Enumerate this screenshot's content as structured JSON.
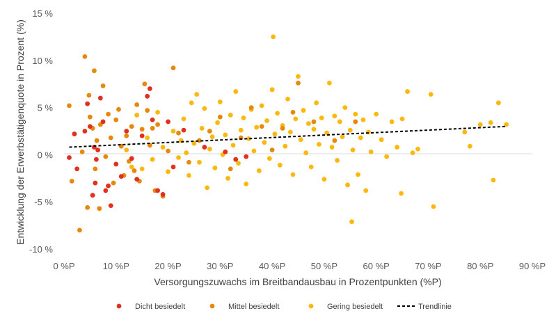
{
  "chart_data": {
    "type": "scatter",
    "xlabel": "Versorgungszuwachs im Breitbandausbau in Prozentpunkten (%P)",
    "ylabel": "Entwicklung der Erwerbstätigenquote in Prozent (%)",
    "xlim": [
      0,
      90
    ],
    "ylim": [
      -10,
      15
    ],
    "x_ticks": [
      {
        "value": 0,
        "label": "0 %P"
      },
      {
        "value": 10,
        "label": "10 %P"
      },
      {
        "value": 20,
        "label": "20 %P"
      },
      {
        "value": 30,
        "label": "30 %P"
      },
      {
        "value": 40,
        "label": "40 %P"
      },
      {
        "value": 50,
        "label": "50 %P"
      },
      {
        "value": 60,
        "label": "60 %P"
      },
      {
        "value": 70,
        "label": "70 %P"
      },
      {
        "value": 80,
        "label": "80 %P"
      },
      {
        "value": 90,
        "label": "90 %P"
      }
    ],
    "y_ticks": [
      {
        "value": -10,
        "label": "-10 %"
      },
      {
        "value": -5,
        "label": "-5 %"
      },
      {
        "value": 0,
        "label": "0 %"
      },
      {
        "value": 5,
        "label": "5 %"
      },
      {
        "value": 10,
        "label": "10 %"
      },
      {
        "value": 15,
        "label": "15 %"
      }
    ],
    "grid": false,
    "legend_position": "bottom",
    "series": [
      {
        "name": "Dicht besiedelt",
        "color": "#e0301e",
        "points": [
          [
            1,
            -0.3
          ],
          [
            2,
            2.2
          ],
          [
            2.5,
            -1.5
          ],
          [
            4,
            2.5
          ],
          [
            4.5,
            5.4
          ],
          [
            5,
            3
          ],
          [
            5.5,
            -4.3
          ],
          [
            5.8,
            0.8
          ],
          [
            6,
            -3
          ],
          [
            6.2,
            -0.5
          ],
          [
            6.5,
            0.5
          ],
          [
            7,
            6
          ],
          [
            7.5,
            3.5
          ],
          [
            8,
            -3.8
          ],
          [
            8.5,
            -3.3
          ],
          [
            9,
            -5.4
          ],
          [
            10,
            -1
          ],
          [
            11,
            -2.3
          ],
          [
            12,
            2.5
          ],
          [
            13,
            -0.4
          ],
          [
            14,
            -2.6
          ],
          [
            15,
            2
          ],
          [
            16,
            6.2
          ],
          [
            16.5,
            7
          ],
          [
            17,
            3.7
          ],
          [
            18,
            -3.8
          ],
          [
            19,
            -4.2
          ],
          [
            20,
            3.5
          ],
          [
            21,
            -1.3
          ],
          [
            23,
            2.6
          ],
          [
            27,
            0.8
          ],
          [
            31,
            0.3
          ],
          [
            33,
            -0.5
          ],
          [
            35,
            -0.2
          ]
        ]
      },
      {
        "name": "Mittel besiedelt",
        "color": "#e6890b",
        "points": [
          [
            1,
            5.2
          ],
          [
            1.5,
            -2.8
          ],
          [
            3,
            -8
          ],
          [
            3.5,
            0.3
          ],
          [
            4,
            10.4
          ],
          [
            4.5,
            -5.6
          ],
          [
            4.8,
            6.3
          ],
          [
            5,
            4
          ],
          [
            5.5,
            2.8
          ],
          [
            5.8,
            8.9
          ],
          [
            6,
            -1.5
          ],
          [
            6.3,
            1.5
          ],
          [
            6.8,
            -5.7
          ],
          [
            7,
            3.2
          ],
          [
            7.5,
            7.3
          ],
          [
            8,
            -0.2
          ],
          [
            8.5,
            4.3
          ],
          [
            9,
            1.8
          ],
          [
            9.5,
            -3
          ],
          [
            10,
            3.7
          ],
          [
            10.5,
            4.8
          ],
          [
            11,
            0.9
          ],
          [
            11.5,
            -2.2
          ],
          [
            12,
            2
          ],
          [
            12.5,
            -0.7
          ],
          [
            13,
            3
          ],
          [
            13.5,
            -1.7
          ],
          [
            14,
            5.3
          ],
          [
            14.5,
            -2.8
          ],
          [
            15,
            2.7
          ],
          [
            15.5,
            7.5
          ],
          [
            16,
            4.7
          ],
          [
            16.5,
            1
          ],
          [
            17,
            2.8
          ],
          [
            17.5,
            -3.8
          ],
          [
            18,
            3.2
          ],
          [
            19,
            -4.4
          ],
          [
            20,
            0.4
          ],
          [
            21,
            9.2
          ],
          [
            22,
            2.3
          ],
          [
            24,
            -0.8
          ],
          [
            26,
            1.5
          ],
          [
            28,
            2.5
          ],
          [
            30,
            4
          ],
          [
            32,
            -1.5
          ],
          [
            34,
            1.8
          ],
          [
            36,
            5
          ],
          [
            38,
            3
          ],
          [
            40,
            0.5
          ],
          [
            42,
            2.8
          ],
          [
            44,
            4.5
          ],
          [
            45,
            7.6
          ],
          [
            48,
            3.5
          ],
          [
            52,
            1.5
          ],
          [
            56,
            3.5
          ]
        ]
      },
      {
        "name": "Gering besiedelt",
        "color": "#fbb80f",
        "points": [
          [
            12,
            0.5
          ],
          [
            13,
            -1.3
          ],
          [
            14,
            4.2
          ],
          [
            15,
            -1.5
          ],
          [
            16,
            1.8
          ],
          [
            17,
            -0.5
          ],
          [
            18,
            4.5
          ],
          [
            19,
            0.8
          ],
          [
            20,
            -1.8
          ],
          [
            21,
            2.5
          ],
          [
            22,
            -0.3
          ],
          [
            22.5,
            1.5
          ],
          [
            23,
            3.8
          ],
          [
            23.5,
            0.2
          ],
          [
            24,
            -2.2
          ],
          [
            24.5,
            5.5
          ],
          [
            25,
            1.2
          ],
          [
            25.5,
            6.4
          ],
          [
            26,
            -0.8
          ],
          [
            26.5,
            2.8
          ],
          [
            27,
            4.9
          ],
          [
            27.5,
            -3.5
          ],
          [
            28,
            0.6
          ],
          [
            28.5,
            1.9
          ],
          [
            29,
            -1.4
          ],
          [
            29.5,
            3.4
          ],
          [
            30,
            5.6
          ],
          [
            30.5,
            0
          ],
          [
            31,
            2.1
          ],
          [
            31.5,
            -2.5
          ],
          [
            32,
            4.2
          ],
          [
            32.5,
            1
          ],
          [
            33,
            6.7
          ],
          [
            33.5,
            -0.9
          ],
          [
            34,
            2.6
          ],
          [
            34.5,
            3.9
          ],
          [
            35,
            -3.1
          ],
          [
            35.5,
            1.7
          ],
          [
            36,
            4.8
          ],
          [
            36.5,
            0.4
          ],
          [
            37,
            2.9
          ],
          [
            37.5,
            -1.7
          ],
          [
            38,
            5.2
          ],
          [
            38.5,
            1.3
          ],
          [
            39,
            3.6
          ],
          [
            39.5,
            -0.4
          ],
          [
            40,
            6.9
          ],
          [
            40.2,
            12.5
          ],
          [
            40.5,
            2.2
          ],
          [
            41,
            4.4
          ],
          [
            41.5,
            -1.1
          ],
          [
            42,
            3.1
          ],
          [
            42.5,
            0.9
          ],
          [
            43,
            5.9
          ],
          [
            43.5,
            2.4
          ],
          [
            44,
            -2.1
          ],
          [
            44.5,
            3.8
          ],
          [
            45,
            8.3
          ],
          [
            45.5,
            1.6
          ],
          [
            46,
            4.7
          ],
          [
            46.5,
            0.2
          ],
          [
            47,
            3.3
          ],
          [
            47.5,
            -1.3
          ],
          [
            48,
            2.7
          ],
          [
            48.5,
            5.5
          ],
          [
            49,
            1.1
          ],
          [
            49.5,
            3.9
          ],
          [
            50,
            -2.6
          ],
          [
            50.5,
            2.3
          ],
          [
            51,
            7.6
          ],
          [
            51.5,
            0.8
          ],
          [
            52,
            4.1
          ],
          [
            52.5,
            -0.6
          ],
          [
            53,
            3.5
          ],
          [
            53.5,
            1.9
          ],
          [
            54,
            5
          ],
          [
            54.5,
            -3.2
          ],
          [
            55,
            2.6
          ],
          [
            55.3,
            -7.1
          ],
          [
            55.5,
            0.5
          ],
          [
            56,
            4.3
          ],
          [
            56.5,
            -2.1
          ],
          [
            57,
            1.8
          ],
          [
            57.5,
            3.7
          ],
          [
            58,
            -3.8
          ],
          [
            58.5,
            2.4
          ],
          [
            59,
            0.3
          ],
          [
            60,
            4.3
          ],
          [
            61,
            1.6
          ],
          [
            62,
            -0.2
          ],
          [
            63,
            3.5
          ],
          [
            64,
            0.8
          ],
          [
            64.8,
            -4.1
          ],
          [
            65,
            3.8
          ],
          [
            66,
            6.7
          ],
          [
            67,
            0.2
          ],
          [
            68,
            0.6
          ],
          [
            70.5,
            6.4
          ],
          [
            71,
            -5.5
          ],
          [
            77,
            2.4
          ],
          [
            78,
            0.9
          ],
          [
            80,
            3.2
          ],
          [
            82,
            3.4
          ],
          [
            82.5,
            -2.7
          ],
          [
            83.5,
            5.5
          ],
          [
            85,
            3.2
          ]
        ]
      }
    ],
    "trendline": {
      "name": "Trendlinie",
      "color": "#000000",
      "x0": 1,
      "y0": 0.8,
      "x1": 85,
      "y1": 3.0
    }
  }
}
